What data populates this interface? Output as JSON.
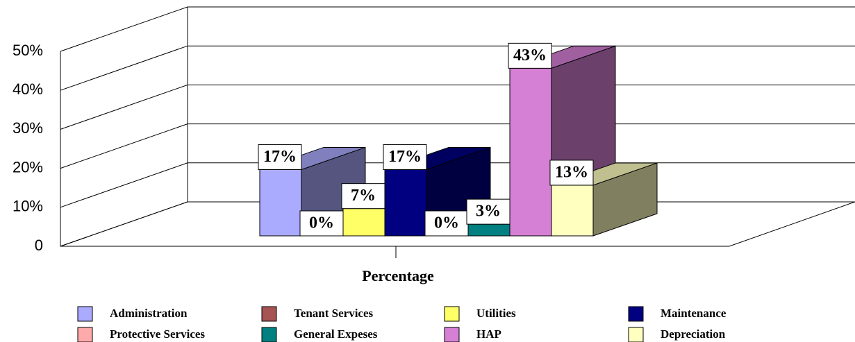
{
  "chart_data": {
    "type": "bar3d",
    "categories": [
      "Percentage"
    ],
    "series": [
      {
        "name": "Administration",
        "color": "#aaaaff",
        "values": [
          17
        ],
        "value_labels": [
          "17%"
        ]
      },
      {
        "name": "Tenant Services",
        "color": "#a65353",
        "values": [
          0
        ],
        "value_labels": [
          "0%"
        ]
      },
      {
        "name": "Utilities",
        "color": "#ffff66",
        "values": [
          7
        ],
        "value_labels": [
          "7%"
        ]
      },
      {
        "name": "Maintenance",
        "color": "#000080",
        "values": [
          17
        ],
        "value_labels": [
          "17%"
        ]
      },
      {
        "name": "Protective Services",
        "color": "#ffaaaa",
        "values": [
          0
        ],
        "value_labels": [
          "0%"
        ]
      },
      {
        "name": "General Expeses",
        "color": "#008080",
        "values": [
          3
        ],
        "value_labels": [
          "3%"
        ]
      },
      {
        "name": "HAP",
        "color": "#d580d5",
        "values": [
          43
        ],
        "value_labels": [
          "43%"
        ]
      },
      {
        "name": "Depreciation",
        "color": "#ffffc0",
        "values": [
          13
        ],
        "value_labels": [
          "13%"
        ]
      }
    ],
    "ylim": [
      0,
      50
    ],
    "yticks": [
      0,
      {
        "value": 10,
        "label": "10%"
      },
      {
        "value": 20,
        "label": "20%"
      },
      {
        "value": 30,
        "label": "30%"
      },
      {
        "value": 40,
        "label": "40%"
      },
      {
        "value": 50,
        "label": "50%"
      }
    ],
    "grid": true
  }
}
